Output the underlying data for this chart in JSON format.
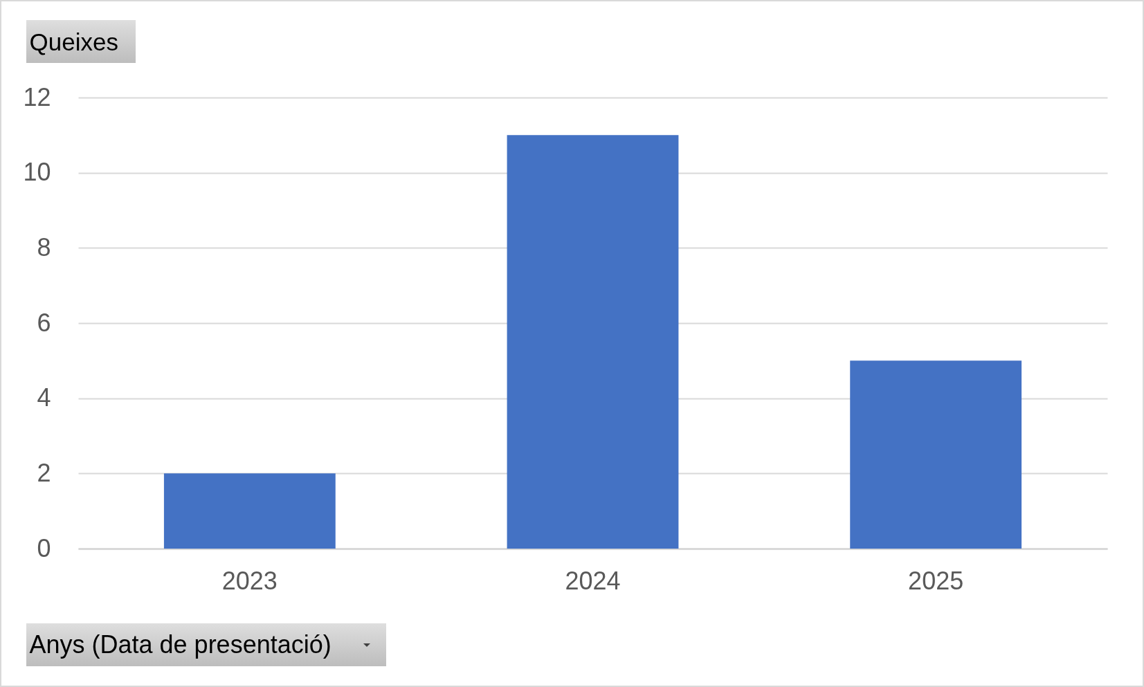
{
  "chart_data": {
    "type": "bar",
    "categories": [
      "2023",
      "2024",
      "2025"
    ],
    "values": [
      2,
      11,
      5
    ],
    "color": "#4472c4",
    "ylim": [
      0,
      12
    ],
    "yticks": [
      0,
      2,
      4,
      6,
      8,
      10,
      12
    ],
    "grid": "y",
    "xlabel": "Anys (Data de presentació)",
    "ylabel": "Queixes"
  }
}
